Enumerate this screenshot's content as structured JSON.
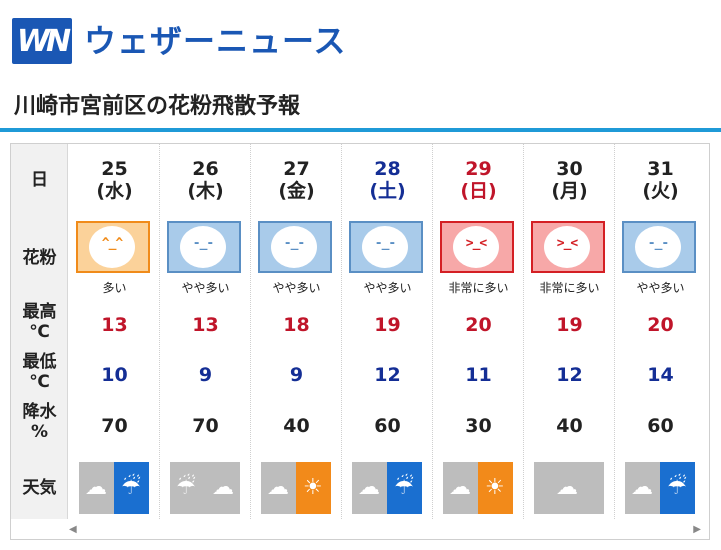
{
  "header": {
    "logo_text": "WN",
    "brand": "ウェザーニュース",
    "page_title": "川崎市宮前区の花粉飛散予報"
  },
  "labels": {
    "day": "日",
    "pollen": "花粉",
    "high_line1": "最高",
    "high_line2": "℃",
    "low_line1": "最低",
    "low_line2": "℃",
    "rain_line1": "降水",
    "rain_line2": "%",
    "weather": "天気"
  },
  "colors": {
    "high": "#c0152a",
    "low": "#142e95",
    "rain": "#222222",
    "saturday": "#142e95",
    "sunday": "#c0152a",
    "weekday": "#222222",
    "pollen_orange_fill": "#fbd29a",
    "pollen_orange_line": "#f08b1a",
    "pollen_blue_fill": "#a9cbea",
    "pollen_blue_line": "#5a8fc4",
    "pollen_red_fill": "#f7a8a8",
    "pollen_red_line": "#d41f24"
  },
  "days": [
    {
      "date": "25",
      "weekday": "(水)",
      "type": "weekday",
      "pollen_level": "多い",
      "pollen_color": "orange",
      "face": "^_^",
      "high": "13",
      "low": "10",
      "rain": "70",
      "weather_icon": "cloud-then-rain-icon",
      "wx_left": "cloud",
      "wx_right": "rain",
      "wx_right_color": "#1a6fd0"
    },
    {
      "date": "26",
      "weekday": "(木)",
      "type": "weekday",
      "pollen_level": "やや多い",
      "pollen_color": "blue",
      "face": "-_-",
      "high": "13",
      "low": "9",
      "rain": "70",
      "weather_icon": "rain-then-cloud-icon",
      "wx_left": "rain",
      "wx_right": "cloud",
      "wx_right_color": "#bdbdbd"
    },
    {
      "date": "27",
      "weekday": "(金)",
      "type": "weekday",
      "pollen_level": "やや多い",
      "pollen_color": "blue",
      "face": "-_-",
      "high": "18",
      "low": "9",
      "rain": "40",
      "weather_icon": "cloud-then-sun-icon",
      "wx_left": "cloud",
      "wx_right": "sun",
      "wx_right_color": "#f28a1a"
    },
    {
      "date": "28",
      "weekday": "(土)",
      "type": "saturday",
      "pollen_level": "やや多い",
      "pollen_color": "blue",
      "face": "-_-",
      "high": "19",
      "low": "12",
      "rain": "60",
      "weather_icon": "cloud-then-rain-icon",
      "wx_left": "cloud",
      "wx_right": "rain",
      "wx_right_color": "#1a6fd0"
    },
    {
      "date": "29",
      "weekday": "(日)",
      "type": "sunday",
      "pollen_level": "非常に多い",
      "pollen_color": "red",
      "face": ">_<",
      "high": "20",
      "low": "11",
      "rain": "30",
      "weather_icon": "cloud-then-sun-icon",
      "wx_left": "cloud",
      "wx_right": "sun",
      "wx_right_color": "#f28a1a"
    },
    {
      "date": "30",
      "weekday": "(月)",
      "type": "weekday",
      "pollen_level": "非常に多い",
      "pollen_color": "red",
      "face": ">_<",
      "high": "19",
      "low": "12",
      "rain": "40",
      "weather_icon": "cloud-icon",
      "wx_left": "cloud",
      "wx_right": "",
      "wx_right_color": "#bdbdbd"
    },
    {
      "date": "31",
      "weekday": "(火)",
      "type": "weekday",
      "pollen_level": "やや多い",
      "pollen_color": "blue",
      "face": "-_-",
      "high": "20",
      "low": "14",
      "rain": "60",
      "weather_icon": "cloud-then-rain-icon",
      "wx_left": "cloud",
      "wx_right": "rain",
      "wx_right_color": "#1a6fd0"
    }
  ],
  "scrollbar": {
    "left_arrow": "◀",
    "right_arrow": "▶"
  }
}
